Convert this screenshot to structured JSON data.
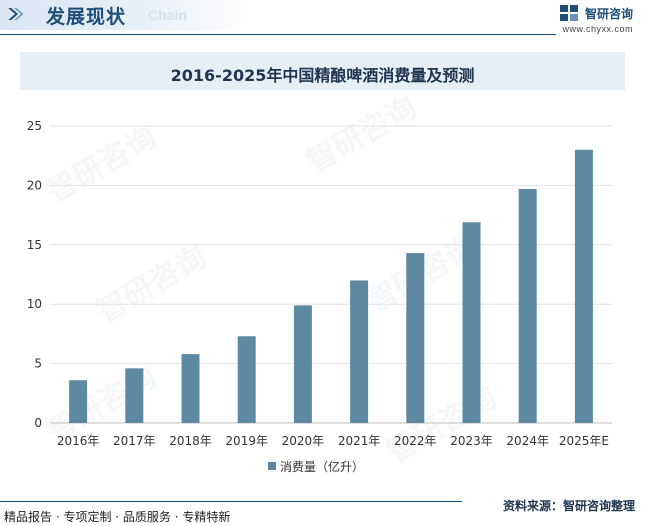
{
  "header": {
    "title": "发展现状",
    "subtitle": "Chain",
    "brand_name": "智研咨询",
    "brand_url": "www.chyxx.com"
  },
  "footer": {
    "left_text": "精品报告 · 专项定制 · 品质服务 · 专精特新",
    "source_text": "资料来源：智研咨询整理"
  },
  "watermark": {
    "text": "智研咨询"
  },
  "colors": {
    "bar": "#5d8aa1",
    "brand": "#1f4e79",
    "title_bg": "#e6eef6"
  },
  "chart_data": {
    "type": "bar",
    "title": "2016-2025年中国精酿啤酒消费量及预测",
    "categories": [
      "2016年",
      "2017年",
      "2018年",
      "2019年",
      "2020年",
      "2021年",
      "2022年",
      "2023年",
      "2024年",
      "2025年E"
    ],
    "series": [
      {
        "name": "消费量（亿升）",
        "values": [
          3.6,
          4.6,
          5.8,
          7.3,
          9.9,
          12.0,
          14.3,
          16.9,
          19.7,
          23.0
        ]
      }
    ],
    "ylim": [
      0,
      25
    ],
    "yticks": [
      "0",
      "5",
      "10",
      "15",
      "20",
      "25"
    ],
    "xlabel": "",
    "ylabel": "",
    "grid": true,
    "legend": "bottom"
  }
}
